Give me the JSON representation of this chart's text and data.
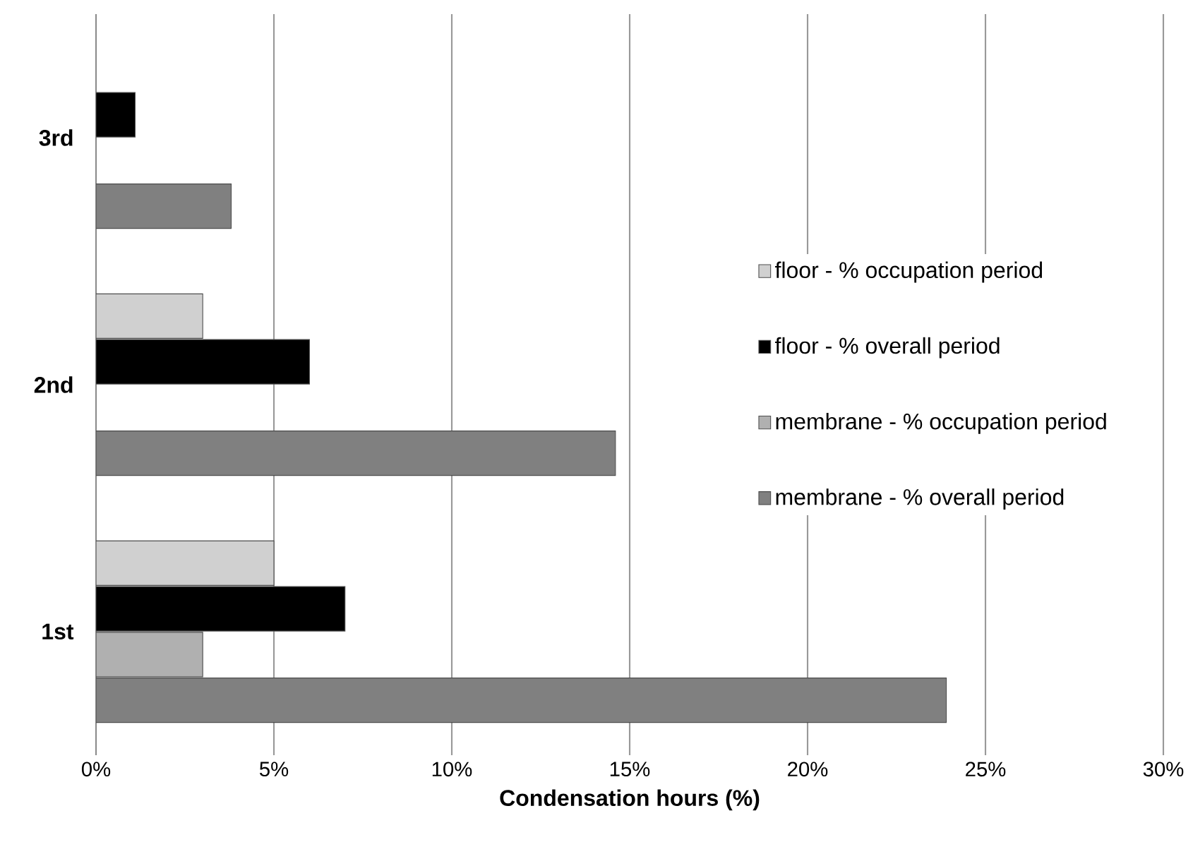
{
  "chart_data": {
    "type": "bar",
    "orientation": "horizontal",
    "xlabel": "Condensation hours (%)",
    "categories": [
      "3rd",
      "2nd",
      "1st"
    ],
    "series": [
      {
        "name": "floor - % occupation period",
        "color": "#d0d0d0",
        "values": [
          null,
          3.0,
          5.0
        ]
      },
      {
        "name": "floor - % overall period",
        "color": "#000000",
        "values": [
          1.1,
          6.0,
          7.0
        ]
      },
      {
        "name": "membrane - % occupation period",
        "color": "#b0b0b0",
        "values": [
          null,
          null,
          3.0
        ]
      },
      {
        "name": "membrane - % overall period",
        "color": "#808080",
        "values": [
          3.8,
          14.6,
          23.9
        ]
      }
    ],
    "xlim": [
      0,
      30
    ],
    "xticks": [
      {
        "value": 0,
        "label": "0%"
      },
      {
        "value": 5,
        "label": "5%"
      },
      {
        "value": 10,
        "label": "10%"
      },
      {
        "value": 15,
        "label": "15%"
      },
      {
        "value": 20,
        "label": "20%"
      },
      {
        "value": 25,
        "label": "25%"
      },
      {
        "value": 30,
        "label": "30%"
      }
    ],
    "grid": "x",
    "legend": "right"
  }
}
